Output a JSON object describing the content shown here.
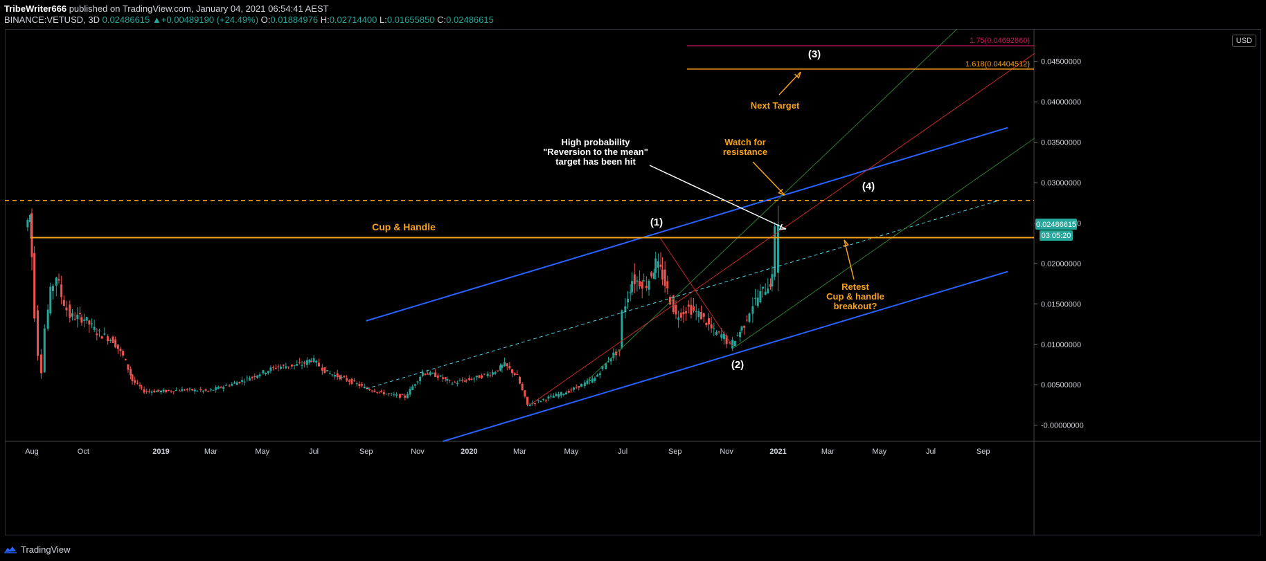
{
  "header": {
    "publisher_line": "TribeWriter666 published on TradingView.com, January 04, 2021 06:54:41 AEST",
    "publisher": "TribeWriter666",
    "publisher_suffix": " published on TradingView.com, January 04, 2021 06:54:41 AEST",
    "symbol": "BINANCE:VETUSD, 3D",
    "last": "0.02486615",
    "change_arrow": "▲",
    "change": "+0.00489190 (+24.49%)",
    "o_label": "O:",
    "o": "0.01884976",
    "h_label": "H:",
    "h": "0.02714400",
    "l_label": "L:",
    "l": "0.01655850",
    "c_label": "C:",
    "c": "0.02486615"
  },
  "currency_badge": "USD",
  "footer": {
    "brand": "TradingView",
    "logo_icon": "tradingview-logo-icon"
  },
  "colors": {
    "background": "#000000",
    "bull": "#26a69a",
    "bear": "#ef5350",
    "orange": "#f7a21b",
    "channel_blue": "#2962ff",
    "fib_red": "#c2185b",
    "dashed_cyan": "#4dd0e1",
    "green_line": "#2e7d32",
    "red_line": "#c62828"
  },
  "chart_data": {
    "type": "candlestick",
    "symbol": "BINANCE:VETUSD",
    "timeframe": "3D",
    "x_ticks": [
      "Aug",
      "Oct",
      "2019",
      "Mar",
      "May",
      "Jul",
      "Sep",
      "Nov",
      "2020",
      "Mar",
      "May",
      "Jul",
      "Sep",
      "Nov",
      "2021",
      "Mar",
      "May",
      "Jul",
      "Sep"
    ],
    "x_tick_dates": [
      "2018-08-01",
      "2018-10-01",
      "2019-01-01",
      "2019-03-01",
      "2019-05-01",
      "2019-07-01",
      "2019-09-01",
      "2019-11-01",
      "2020-01-01",
      "2020-03-01",
      "2020-05-01",
      "2020-07-01",
      "2020-09-01",
      "2020-11-01",
      "2021-01-01",
      "2021-03-01",
      "2021-05-01",
      "2021-07-01",
      "2021-09-01"
    ],
    "y_ticks": [
      "0.04500000",
      "0.04000000",
      "0.03500000",
      "0.03000000",
      "0.02500000",
      "0.02000000",
      "0.01500000",
      "0.01000000",
      "0.00500000",
      "-0.00000000"
    ],
    "y_tick_values": [
      0.045,
      0.04,
      0.035,
      0.03,
      0.025,
      0.02,
      0.015,
      0.01,
      0.005,
      0
    ],
    "ylim": [
      -0.002,
      0.049
    ],
    "price_path": [
      [
        "2018-07-27",
        0.0245
      ],
      [
        "2018-08-01",
        0.026
      ],
      [
        "2018-08-04",
        0.021
      ],
      [
        "2018-08-08",
        0.014
      ],
      [
        "2018-08-12",
        0.009
      ],
      [
        "2018-08-16",
        0.0068
      ],
      [
        "2018-08-20",
        0.012
      ],
      [
        "2018-08-26",
        0.0165
      ],
      [
        "2018-09-02",
        0.0185
      ],
      [
        "2018-09-08",
        0.016
      ],
      [
        "2018-09-18",
        0.0135
      ],
      [
        "2018-10-05",
        0.0132
      ],
      [
        "2018-10-20",
        0.0115
      ],
      [
        "2018-11-08",
        0.0105
      ],
      [
        "2018-11-20",
        0.0085
      ],
      [
        "2018-12-01",
        0.0055
      ],
      [
        "2018-12-15",
        0.0042
      ],
      [
        "2019-01-10",
        0.0042
      ],
      [
        "2019-02-01",
        0.0044
      ],
      [
        "2019-03-01",
        0.0042
      ],
      [
        "2019-04-10",
        0.0055
      ],
      [
        "2019-05-20",
        0.0072
      ],
      [
        "2019-06-20",
        0.0075
      ],
      [
        "2019-07-01",
        0.0082
      ],
      [
        "2019-07-20",
        0.0065
      ],
      [
        "2019-08-15",
        0.0055
      ],
      [
        "2019-09-05",
        0.0045
      ],
      [
        "2019-10-01",
        0.0038
      ],
      [
        "2019-10-20",
        0.0035
      ],
      [
        "2019-11-10",
        0.0065
      ],
      [
        "2019-11-25",
        0.0062
      ],
      [
        "2019-12-15",
        0.0052
      ],
      [
        "2020-01-10",
        0.0058
      ],
      [
        "2020-02-01",
        0.0065
      ],
      [
        "2020-02-15",
        0.0075
      ],
      [
        "2020-03-01",
        0.006
      ],
      [
        "2020-03-13",
        0.0025
      ],
      [
        "2020-04-01",
        0.0032
      ],
      [
        "2020-05-01",
        0.0042
      ],
      [
        "2020-06-01",
        0.0058
      ],
      [
        "2020-06-20",
        0.0085
      ],
      [
        "2020-06-30",
        0.0092
      ],
      [
        "2020-07-04",
        0.014
      ],
      [
        "2020-07-15",
        0.018
      ],
      [
        "2020-08-01",
        0.0175
      ],
      [
        "2020-08-12",
        0.02
      ],
      [
        "2020-08-20",
        0.0185
      ],
      [
        "2020-09-05",
        0.0135
      ],
      [
        "2020-09-20",
        0.0145
      ],
      [
        "2020-10-05",
        0.0135
      ],
      [
        "2020-10-20",
        0.0115
      ],
      [
        "2020-11-01",
        0.011
      ],
      [
        "2020-11-08",
        0.0098
      ],
      [
        "2020-11-25",
        0.0125
      ],
      [
        "2020-12-05",
        0.015
      ],
      [
        "2020-12-20",
        0.017
      ],
      [
        "2020-12-28",
        0.018
      ],
      [
        "2021-01-01",
        0.0249
      ]
    ],
    "last_price": 0.02486615,
    "price_label": "0.02486615",
    "countdown_label": "03:05:20",
    "annotations": [
      {
        "text": "Cup & Handle",
        "color": "#f7a21b"
      },
      {
        "text": "(1)",
        "color": "#ffffff"
      },
      {
        "text": "(2)",
        "color": "#ffffff"
      },
      {
        "text": "(3)",
        "color": "#ffffff"
      },
      {
        "text": "(4)",
        "color": "#ffffff"
      },
      {
        "text": "Next Target",
        "color": "#f7a21b"
      },
      {
        "lines": [
          "Watch for",
          "resistance"
        ],
        "color": "#f7a21b"
      },
      {
        "lines": [
          "High probability",
          "\"Reversion to the mean\"",
          "target has been hit"
        ],
        "color": "#ffffff"
      },
      {
        "lines": [
          "Retest",
          "Cup & handle",
          "breakout?"
        ],
        "color": "#f7a21b"
      }
    ],
    "levels": [
      {
        "name": "cup-handle-neckline",
        "value": 0.0232,
        "color": "#f7a21b",
        "style": "solid"
      },
      {
        "name": "resistance-dashed",
        "value": 0.0278,
        "color": "#f7a21b",
        "style": "dashed"
      },
      {
        "name": "fib-1.75",
        "label": "1.75(0.04692860)",
        "value": 0.0469286,
        "color": "#c2185b"
      },
      {
        "name": "fib-1.618",
        "label": "1.618(0.04404512)",
        "value": 0.04404512,
        "color": "#f7a21b"
      }
    ],
    "channel": {
      "upper": [
        [
          "2019-09-01",
          0.0129
        ],
        [
          "2021-09-30",
          0.0368
        ]
      ],
      "lower": [
        [
          "2019-12-01",
          -0.002
        ],
        [
          "2021-09-30",
          0.019
        ]
      ],
      "mid_dashed": [
        [
          "2019-09-01",
          0.0045
        ],
        [
          "2021-09-20",
          0.0278
        ]
      ]
    },
    "grid": false,
    "legend": "none"
  }
}
